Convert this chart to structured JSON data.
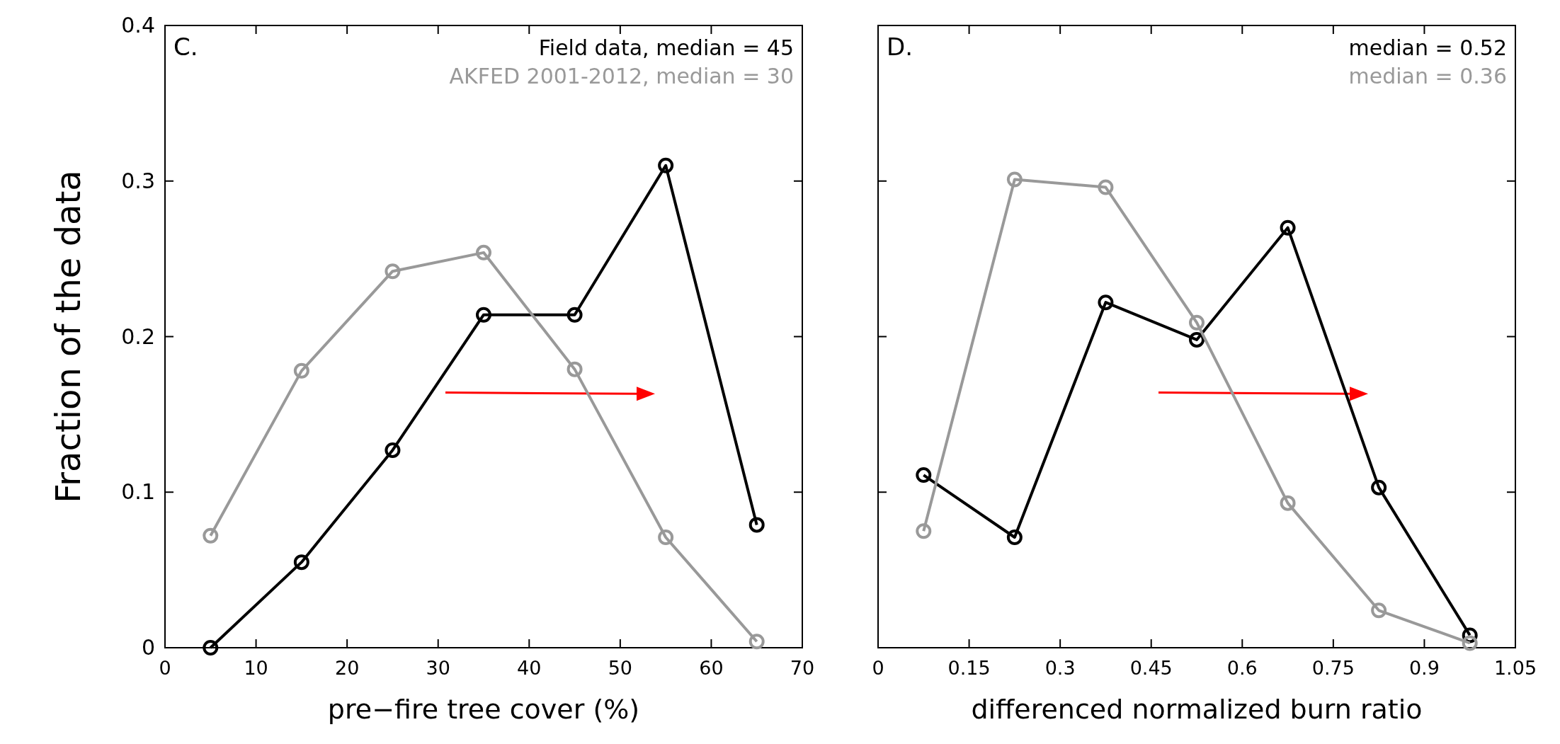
{
  "chart_data": [
    {
      "type": "line",
      "annotations": [
        "C."
      ],
      "ylabel": "Fraction of the data",
      "xlabel": "pre−fire tree cover (%)",
      "x": [
        5,
        15,
        25,
        35,
        45,
        55,
        65
      ],
      "xlim": [
        0,
        70
      ],
      "xticks": [
        0,
        10,
        20,
        30,
        40,
        50,
        60,
        70
      ],
      "ylim": [
        0,
        0.4
      ],
      "yticks": [
        0,
        0.1,
        0.2,
        0.3,
        0.4
      ],
      "marker": "circle",
      "legend": "top right",
      "grid": false,
      "series": [
        {
          "name": "Field data, median = 45",
          "color": "#000000",
          "values": [
            0,
            0.055,
            0.127,
            0.214,
            0.214,
            0.31,
            0.079
          ]
        },
        {
          "name": "AKFED 2001-2012, median = 30",
          "color": "#999999",
          "values": [
            0.072,
            0.178,
            0.242,
            0.254,
            0.179,
            0.071,
            0.004
          ]
        }
      ]
    },
    {
      "type": "line",
      "annotations": [
        "D."
      ],
      "xlabel": "differenced normalized burn ratio",
      "x": [
        0.075,
        0.225,
        0.375,
        0.525,
        0.675,
        0.825,
        0.975
      ],
      "xlim": [
        0,
        1.05
      ],
      "xticks": [
        0,
        0.15,
        0.3,
        0.45,
        0.6,
        0.75,
        0.9,
        1.05
      ],
      "ylim": [
        0,
        0.4
      ],
      "yticks": [
        0,
        0.1,
        0.2,
        0.3,
        0.4
      ],
      "tick_labels": "x",
      "marker": "circle",
      "legend": "top right",
      "grid": false,
      "series": [
        {
          "name": "median = 0.52",
          "color": "#000000",
          "values": [
            0.111,
            0.071,
            0.222,
            0.198,
            0.27,
            0.103,
            0.008
          ]
        },
        {
          "name": "median = 0.36",
          "color": "#999999",
          "values": [
            0.075,
            0.301,
            0.296,
            0.209,
            0.093,
            0.024,
            0.003
          ]
        }
      ]
    }
  ]
}
